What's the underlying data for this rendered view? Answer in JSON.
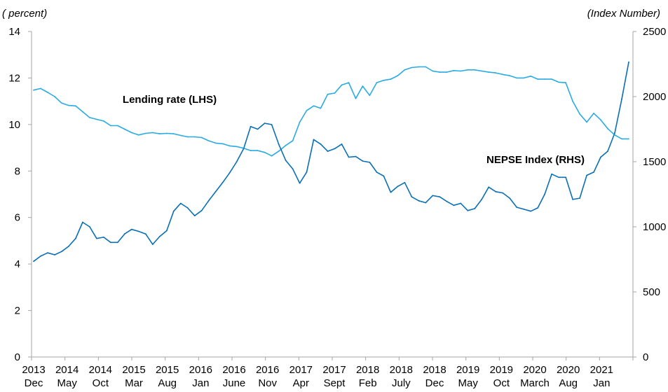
{
  "chart_data": {
    "type": "line",
    "left_unit": "( percent)",
    "right_unit": "(Index Number)",
    "y_left": {
      "lim": [
        0,
        14
      ],
      "ticks": [
        0,
        2,
        4,
        6,
        8,
        10,
        12,
        14
      ]
    },
    "y_right": {
      "lim": [
        0,
        2500
      ],
      "ticks": [
        0,
        500,
        1000,
        1500,
        2000,
        2500
      ]
    },
    "x_ticks": [
      {
        "year": "2013",
        "month": "Dec"
      },
      {
        "year": "2014",
        "month": "May"
      },
      {
        "year": "2014",
        "month": "Oct"
      },
      {
        "year": "2015",
        "month": "Mar"
      },
      {
        "year": "2015",
        "month": "Aug"
      },
      {
        "year": "2016",
        "month": "Jan"
      },
      {
        "year": "2016",
        "month": "June"
      },
      {
        "year": "2016",
        "month": "Nov"
      },
      {
        "year": "2017",
        "month": "Apr"
      },
      {
        "year": "2017",
        "month": "Sept"
      },
      {
        "year": "2018",
        "month": "Feb"
      },
      {
        "year": "2018",
        "month": "July"
      },
      {
        "year": "2018",
        "month": "Dec"
      },
      {
        "year": "2019",
        "month": "May"
      },
      {
        "year": "2019",
        "month": "Oct"
      },
      {
        "year": "2020",
        "month": "March"
      },
      {
        "year": "2020",
        "month": "Aug"
      },
      {
        "year": "2021",
        "month": "Jan"
      }
    ],
    "grid": false,
    "series": [
      {
        "name": "Lending rate (LHS)",
        "axis": "left",
        "color": "#29ABE2",
        "values": [
          11.48,
          11.55,
          11.38,
          11.2,
          10.92,
          10.82,
          10.8,
          10.55,
          10.3,
          10.22,
          10.15,
          9.95,
          9.95,
          9.8,
          9.65,
          9.55,
          9.62,
          9.65,
          9.6,
          9.62,
          9.6,
          9.53,
          9.47,
          9.47,
          9.44,
          9.3,
          9.2,
          9.17,
          9.08,
          9.05,
          8.98,
          8.88,
          8.88,
          8.8,
          8.65,
          8.85,
          9.1,
          9.3,
          10.1,
          10.6,
          10.8,
          10.7,
          11.3,
          11.35,
          11.7,
          11.8,
          11.12,
          11.65,
          11.25,
          11.8,
          11.9,
          11.95,
          12.1,
          12.35,
          12.45,
          12.48,
          12.48,
          12.3,
          12.25,
          12.25,
          12.32,
          12.3,
          12.35,
          12.35,
          12.3,
          12.25,
          12.22,
          12.15,
          12.1,
          12.0,
          12.0,
          12.08,
          11.95,
          11.95,
          11.95,
          11.82,
          11.8,
          11.0,
          10.45,
          10.1,
          10.48,
          10.2,
          9.82,
          9.55,
          9.38,
          9.38
        ]
      },
      {
        "name": "NEPSE Index (RHS)",
        "axis": "right",
        "color": "#0B6FB6",
        "values": [
          735,
          775,
          800,
          785,
          810,
          850,
          910,
          1035,
          1000,
          910,
          920,
          880,
          880,
          945,
          980,
          965,
          945,
          865,
          925,
          970,
          1120,
          1180,
          1145,
          1085,
          1125,
          1200,
          1270,
          1340,
          1415,
          1500,
          1600,
          1770,
          1750,
          1795,
          1785,
          1635,
          1510,
          1445,
          1335,
          1420,
          1670,
          1635,
          1580,
          1600,
          1635,
          1535,
          1540,
          1505,
          1495,
          1420,
          1390,
          1265,
          1310,
          1340,
          1230,
          1200,
          1185,
          1240,
          1230,
          1195,
          1165,
          1180,
          1125,
          1140,
          1210,
          1305,
          1270,
          1260,
          1220,
          1150,
          1135,
          1120,
          1145,
          1250,
          1405,
          1380,
          1380,
          1210,
          1220,
          1395,
          1420,
          1535,
          1580,
          1720,
          1980,
          2265
        ]
      }
    ]
  }
}
